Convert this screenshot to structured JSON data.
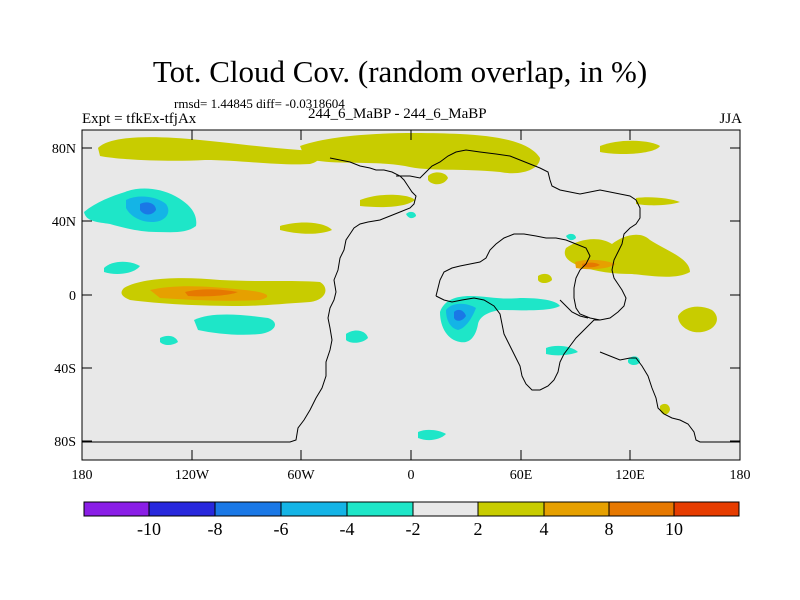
{
  "figure": {
    "title": "Tot. Cloud Cov. (random overlap, in %)",
    "stats": "rmsd= 1.44845 diff= -0.0318604",
    "experiment": "Expt = tfkEx-tfjAx",
    "case": "244_6_MaBP - 244_6_MaBP",
    "season": "JJA"
  },
  "map": {
    "background_color": "#e8e8e8",
    "lon_ticks": [
      "180",
      "120W",
      "60W",
      "0",
      "60E",
      "120E",
      "180"
    ],
    "lat_ticks": [
      "80N",
      "40N",
      "0",
      "40S",
      "80S"
    ]
  },
  "colorbar": {
    "colors": [
      "#8a1ee6",
      "#2828dc",
      "#1a78e6",
      "#14b4e6",
      "#1ee6c8",
      "#e8e8e8",
      "#c8cc00",
      "#e6a000",
      "#e67800",
      "#e63c00",
      "#e61e14"
    ],
    "labels": [
      "-10",
      "-8",
      "-6",
      "-4",
      "-2",
      "2",
      "4",
      "8",
      "10"
    ]
  },
  "palette": {
    "yellow": "#c8cc00",
    "orange": "#e6a000",
    "dark_orange": "#e67800",
    "cyan": "#1ee6c8",
    "light_blue": "#14b4e6",
    "blue": "#1a78e6"
  }
}
